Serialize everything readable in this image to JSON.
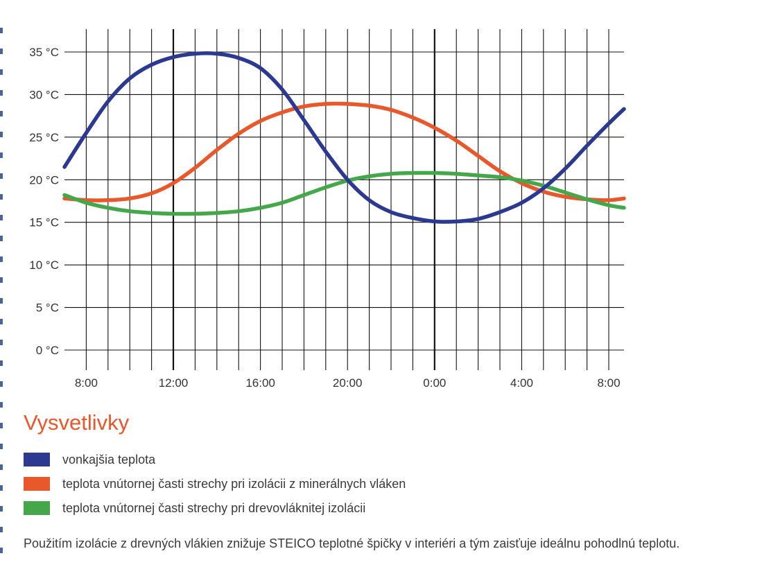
{
  "chart_data": {
    "type": "line",
    "x_tick_labels": [
      "8:00",
      "12:00",
      "16:00",
      "20:00",
      "0:00",
      "4:00",
      "8:00"
    ],
    "x_ticks_hours_since_start": [
      1,
      5,
      9,
      13,
      17,
      21,
      25
    ],
    "y_ticks": [
      0,
      5,
      10,
      15,
      20,
      25,
      30,
      35
    ],
    "y_tick_labels": [
      "0 °C",
      "5 °C",
      "10 °C",
      "15 °C",
      "20 °C",
      "25 °C",
      "30 °C",
      "35 °C"
    ],
    "ylim": [
      0,
      35
    ],
    "grid": true,
    "series": [
      {
        "name": "vonkajšia teplota",
        "color": "#2b3990",
        "x": [
          0,
          1,
          2,
          3,
          4,
          5,
          6,
          7,
          8,
          9,
          10,
          11,
          12,
          13,
          14,
          15,
          16,
          17,
          18,
          19,
          20,
          21,
          22,
          23,
          24,
          25,
          25.7
        ],
        "values": [
          21.5,
          25.5,
          29.2,
          31.9,
          33.5,
          34.4,
          34.8,
          34.8,
          34.3,
          33.1,
          30.6,
          27.0,
          23.3,
          20.0,
          17.6,
          16.2,
          15.5,
          15.1,
          15.1,
          15.4,
          16.2,
          17.3,
          19.0,
          21.3,
          24.0,
          26.6,
          28.3
        ]
      },
      {
        "name": "teplota vnútornej časti strechy pri izolácii z minerálnych vláken",
        "color": "#e8582a",
        "x": [
          0,
          1,
          2,
          3,
          4,
          5,
          6,
          7,
          8,
          9,
          10,
          11,
          12,
          13,
          14,
          15,
          16,
          17,
          18,
          19,
          20,
          21,
          22,
          23,
          24,
          25,
          25.7
        ],
        "values": [
          17.8,
          17.6,
          17.6,
          17.8,
          18.4,
          19.6,
          21.4,
          23.5,
          25.4,
          26.9,
          27.9,
          28.6,
          28.9,
          28.9,
          28.7,
          28.2,
          27.3,
          26.1,
          24.6,
          22.8,
          21.0,
          19.6,
          18.6,
          18.0,
          17.7,
          17.6,
          17.8
        ]
      },
      {
        "name": "teplota vnútornej časti strechy pri drevovláknitej izolácii",
        "color": "#44a84a",
        "x": [
          0,
          1,
          2,
          3,
          4,
          5,
          6,
          7,
          8,
          9,
          10,
          11,
          12,
          13,
          14,
          15,
          16,
          17,
          18,
          19,
          20,
          21,
          22,
          23,
          24,
          25,
          25.7
        ],
        "values": [
          18.2,
          17.3,
          16.7,
          16.3,
          16.1,
          16.0,
          16.0,
          16.1,
          16.3,
          16.7,
          17.3,
          18.2,
          19.1,
          19.9,
          20.4,
          20.7,
          20.8,
          20.8,
          20.7,
          20.5,
          20.3,
          19.9,
          19.3,
          18.5,
          17.7,
          17.0,
          16.7
        ]
      }
    ]
  },
  "legend": {
    "title": "Vysvetlivky",
    "items": [
      {
        "label": "vonkajšia teplota",
        "color": "#2b3990"
      },
      {
        "label": "teplota vnútornej časti strechy pri izolácii z minerálnych vláken",
        "color": "#e8582a"
      },
      {
        "label": "teplota vnútornej časti strechy pri drevovláknitej izolácii",
        "color": "#44a84a"
      }
    ]
  },
  "footnote": "Použitím izolácie z drevných vlákien znižuje STEICO teplotné špičky v interiéri a tým zaisťuje ideálnu pohodlnú teplotu."
}
